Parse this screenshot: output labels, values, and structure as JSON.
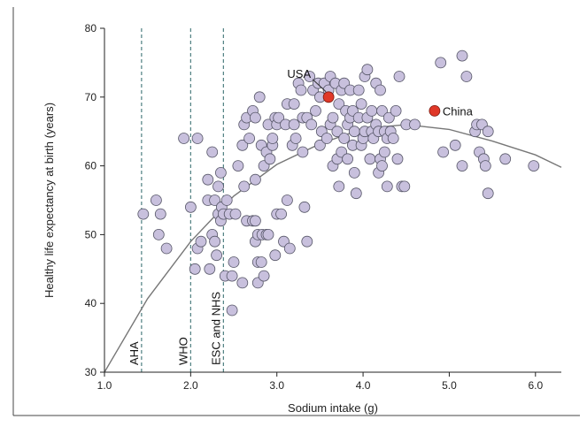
{
  "chart_data": {
    "type": "scatter",
    "xlabel": "Sodium intake (g)",
    "ylabel": "Healthy life expectancy at birth (years)",
    "xlim": [
      1.0,
      6.3
    ],
    "ylim": [
      30,
      80
    ],
    "x_ticks": [
      "1.0",
      "2.0",
      "3.0",
      "4.0",
      "5.0",
      "6.0"
    ],
    "y_ticks": [
      "30",
      "40",
      "50",
      "60",
      "70",
      "80"
    ],
    "grid": false,
    "point_color": "#c8c0dd",
    "point_edge": "#555566",
    "highlight_color": "#e03828",
    "curve_color": "#777777",
    "guideline_color": "#4e7f80",
    "reference_lines": [
      {
        "x": 1.43,
        "label": "AHA"
      },
      {
        "x": 2.0,
        "label": "WHO"
      },
      {
        "x": 2.38,
        "label": "ESC and NHS"
      }
    ],
    "fit_curve": [
      [
        1.0,
        30.0
      ],
      [
        1.5,
        40.7
      ],
      [
        2.0,
        49.0
      ],
      [
        2.5,
        55.6
      ],
      [
        3.0,
        60.2
      ],
      [
        3.5,
        63.2
      ],
      [
        4.0,
        65.4
      ],
      [
        4.5,
        66.0
      ],
      [
        5.0,
        65.3
      ],
      [
        5.5,
        63.6
      ],
      [
        6.0,
        61.6
      ],
      [
        6.3,
        59.8
      ]
    ],
    "highlights": [
      {
        "label": "USA",
        "x": 3.6,
        "y": 70.0
      },
      {
        "label": "China",
        "x": 4.83,
        "y": 68.0
      }
    ],
    "points": [
      [
        1.45,
        53
      ],
      [
        1.6,
        55
      ],
      [
        1.65,
        53
      ],
      [
        1.63,
        50
      ],
      [
        1.72,
        48
      ],
      [
        1.92,
        64
      ],
      [
        2.0,
        54
      ],
      [
        2.05,
        45
      ],
      [
        2.08,
        64
      ],
      [
        2.08,
        48
      ],
      [
        2.12,
        49
      ],
      [
        2.2,
        55
      ],
      [
        2.2,
        58
      ],
      [
        2.22,
        45
      ],
      [
        2.25,
        50
      ],
      [
        2.25,
        62
      ],
      [
        2.28,
        49
      ],
      [
        2.28,
        55
      ],
      [
        2.3,
        47
      ],
      [
        2.32,
        53
      ],
      [
        2.32,
        57
      ],
      [
        2.35,
        59
      ],
      [
        2.35,
        52
      ],
      [
        2.36,
        54
      ],
      [
        2.38,
        53
      ],
      [
        2.4,
        44
      ],
      [
        2.42,
        55
      ],
      [
        2.45,
        53
      ],
      [
        2.48,
        44
      ],
      [
        2.48,
        39
      ],
      [
        2.5,
        46
      ],
      [
        2.52,
        53
      ],
      [
        2.55,
        60
      ],
      [
        2.6,
        43
      ],
      [
        2.6,
        63
      ],
      [
        2.62,
        57
      ],
      [
        2.62,
        66
      ],
      [
        2.65,
        52
      ],
      [
        2.65,
        67
      ],
      [
        2.68,
        64
      ],
      [
        2.72,
        52
      ],
      [
        2.72,
        68
      ],
      [
        2.75,
        49
      ],
      [
        2.75,
        52
      ],
      [
        2.75,
        58
      ],
      [
        2.75,
        67
      ],
      [
        2.78,
        43
      ],
      [
        2.78,
        46
      ],
      [
        2.78,
        50
      ],
      [
        2.8,
        70
      ],
      [
        2.82,
        46
      ],
      [
        2.82,
        63
      ],
      [
        2.83,
        50
      ],
      [
        2.85,
        44
      ],
      [
        2.85,
        60
      ],
      [
        2.88,
        50
      ],
      [
        2.88,
        62
      ],
      [
        2.9,
        50
      ],
      [
        2.9,
        66
      ],
      [
        2.92,
        61
      ],
      [
        2.95,
        63
      ],
      [
        2.95,
        64
      ],
      [
        2.98,
        47
      ],
      [
        2.98,
        67
      ],
      [
        3.0,
        53
      ],
      [
        3.0,
        66
      ],
      [
        3.02,
        67
      ],
      [
        3.05,
        53
      ],
      [
        3.08,
        49
      ],
      [
        3.1,
        66
      ],
      [
        3.12,
        55
      ],
      [
        3.12,
        69
      ],
      [
        3.15,
        48
      ],
      [
        3.18,
        63
      ],
      [
        3.2,
        66
      ],
      [
        3.2,
        69
      ],
      [
        3.22,
        64
      ],
      [
        3.25,
        72
      ],
      [
        3.28,
        71
      ],
      [
        3.3,
        62
      ],
      [
        3.3,
        67
      ],
      [
        3.32,
        54
      ],
      [
        3.35,
        49
      ],
      [
        3.35,
        67
      ],
      [
        3.38,
        73
      ],
      [
        3.4,
        66
      ],
      [
        3.42,
        71
      ],
      [
        3.45,
        68
      ],
      [
        3.48,
        72
      ],
      [
        3.5,
        63
      ],
      [
        3.5,
        70
      ],
      [
        3.52,
        65
      ],
      [
        3.55,
        72
      ],
      [
        3.58,
        64
      ],
      [
        3.6,
        71
      ],
      [
        3.62,
        73
      ],
      [
        3.62,
        66
      ],
      [
        3.65,
        60
      ],
      [
        3.65,
        67
      ],
      [
        3.68,
        72
      ],
      [
        3.7,
        61
      ],
      [
        3.7,
        65
      ],
      [
        3.72,
        69
      ],
      [
        3.72,
        57
      ],
      [
        3.75,
        71
      ],
      [
        3.75,
        62
      ],
      [
        3.78,
        64
      ],
      [
        3.78,
        72
      ],
      [
        3.8,
        68
      ],
      [
        3.82,
        61
      ],
      [
        3.82,
        66
      ],
      [
        3.85,
        71
      ],
      [
        3.85,
        67
      ],
      [
        3.88,
        63
      ],
      [
        3.88,
        68
      ],
      [
        3.9,
        65
      ],
      [
        3.9,
        59
      ],
      [
        3.92,
        56
      ],
      [
        3.95,
        71
      ],
      [
        3.95,
        67
      ],
      [
        3.98,
        63
      ],
      [
        3.98,
        69
      ],
      [
        4.0,
        64
      ],
      [
        4.02,
        65
      ],
      [
        4.02,
        73
      ],
      [
        4.05,
        74
      ],
      [
        4.05,
        67
      ],
      [
        4.08,
        61
      ],
      [
        4.1,
        65
      ],
      [
        4.1,
        68
      ],
      [
        4.12,
        64
      ],
      [
        4.15,
        66
      ],
      [
        4.15,
        72
      ],
      [
        4.18,
        59
      ],
      [
        4.18,
        65
      ],
      [
        4.2,
        61
      ],
      [
        4.2,
        71
      ],
      [
        4.22,
        60
      ],
      [
        4.22,
        68
      ],
      [
        4.25,
        62
      ],
      [
        4.25,
        65
      ],
      [
        4.28,
        57
      ],
      [
        4.28,
        64
      ],
      [
        4.3,
        67
      ],
      [
        4.32,
        65
      ],
      [
        4.35,
        64
      ],
      [
        4.38,
        68
      ],
      [
        4.4,
        61
      ],
      [
        4.42,
        73
      ],
      [
        4.45,
        57
      ],
      [
        4.48,
        57
      ],
      [
        4.5,
        66
      ],
      [
        4.6,
        66
      ],
      [
        4.9,
        75
      ],
      [
        4.93,
        62
      ],
      [
        5.07,
        63
      ],
      [
        5.15,
        76
      ],
      [
        5.15,
        60
      ],
      [
        5.2,
        73
      ],
      [
        5.3,
        65
      ],
      [
        5.32,
        66
      ],
      [
        5.35,
        62
      ],
      [
        5.38,
        66
      ],
      [
        5.4,
        61
      ],
      [
        5.42,
        60
      ],
      [
        5.45,
        56
      ],
      [
        5.45,
        65
      ],
      [
        5.65,
        61
      ],
      [
        5.98,
        60
      ]
    ]
  }
}
